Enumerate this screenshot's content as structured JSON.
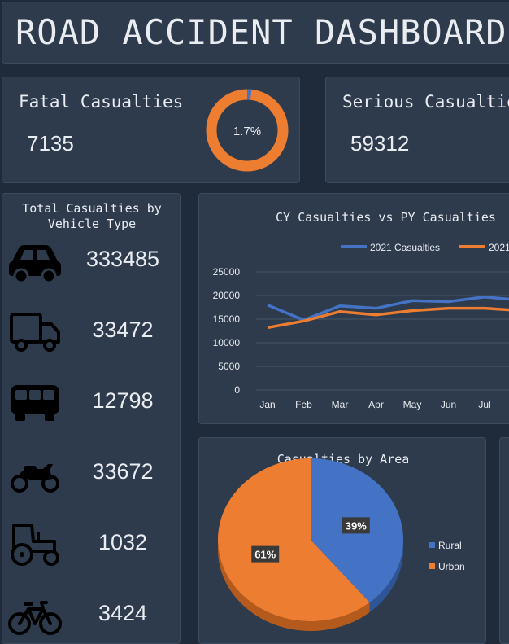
{
  "dashboard": {
    "title": "ROAD ACCIDENT DASHBOARD"
  },
  "kpis": {
    "fatal": {
      "label": "Fatal Casualties",
      "value": "7135",
      "share_label": "1.7%",
      "share": 0.017
    },
    "serious": {
      "label": "Serious Casualties",
      "value": "59312"
    }
  },
  "vehicles": {
    "title_line1": "Total Casualties by",
    "title_line2": "Vehicle Type",
    "items": [
      {
        "icon": "car-icon",
        "value": "333485"
      },
      {
        "icon": "truck-icon",
        "value": "33472"
      },
      {
        "icon": "bus-icon",
        "value": "12798"
      },
      {
        "icon": "motorcycle-icon",
        "value": "33672"
      },
      {
        "icon": "tractor-icon",
        "value": "1032"
      },
      {
        "icon": "bicycle-icon",
        "value": "3424"
      }
    ]
  },
  "colors": {
    "blue": "#4472c4",
    "orange": "#ed7d31",
    "background": "#1f2a3a",
    "panel": "#2e3b4c"
  },
  "chart_data": [
    {
      "type": "line",
      "title": "CY Casualties vs PY Casualties",
      "categories": [
        "Jan",
        "Feb",
        "Mar",
        "Apr",
        "May",
        "Jun",
        "Jul"
      ],
      "series": [
        {
          "name": "2021 Casualties",
          "color": "#4472c4",
          "values": [
            18000,
            14800,
            17800,
            17300,
            18900,
            18700,
            19700
          ]
        },
        {
          "name": "2021",
          "color": "#ed7d31",
          "values": [
            13200,
            14600,
            16600,
            15900,
            16800,
            17300,
            17300
          ]
        }
      ],
      "yticks": [
        "25000",
        "20000",
        "15000",
        "10000",
        "5000",
        "0"
      ],
      "ylim": [
        0,
        25000
      ],
      "legend": "top",
      "grid": true
    },
    {
      "type": "pie",
      "title": "Casualties by Area",
      "slices": [
        {
          "label": "Rural",
          "value": 39,
          "display": "39%",
          "color": "#4472c4"
        },
        {
          "label": "Urban",
          "value": 61,
          "display": "61%",
          "color": "#ed7d31"
        }
      ],
      "legend": "right"
    }
  ]
}
